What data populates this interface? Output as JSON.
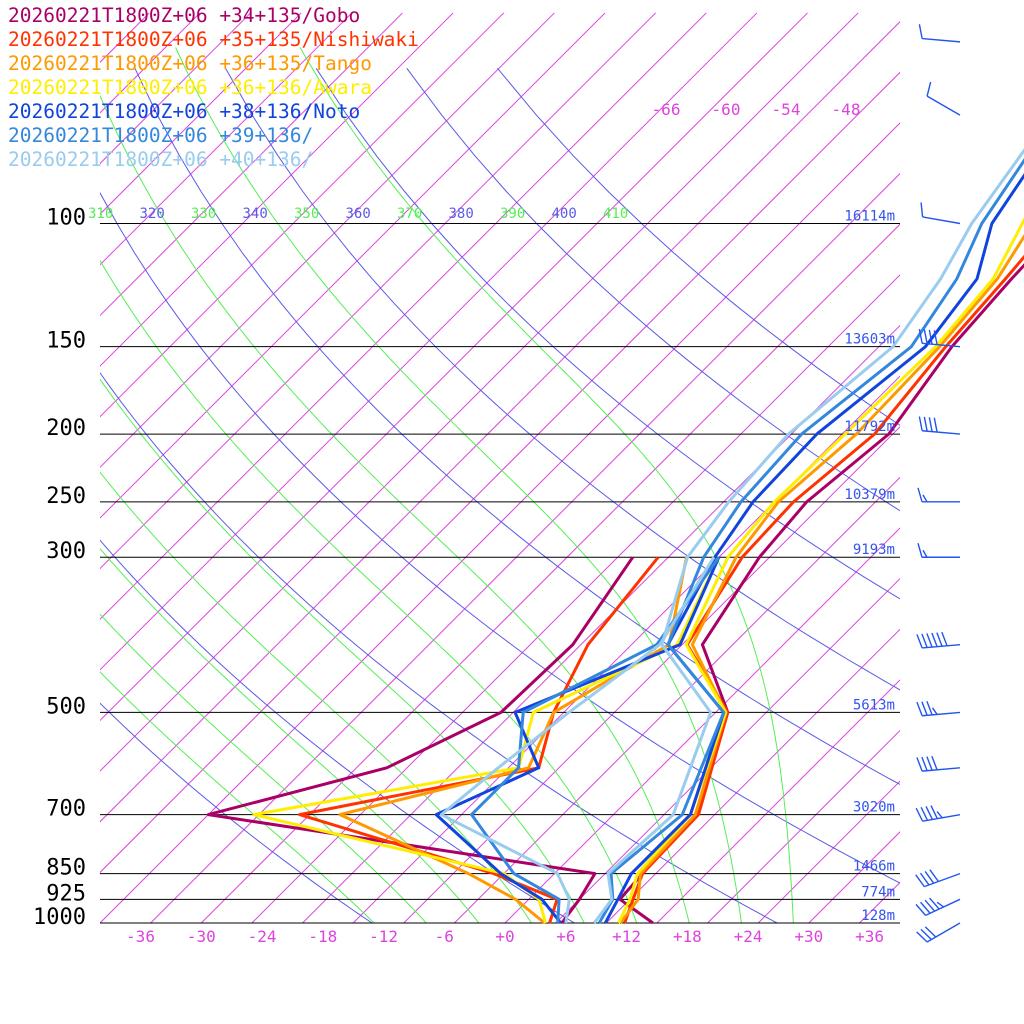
{
  "chart_data": {
    "type": "line",
    "title": "",
    "xlabel": "",
    "ylabel": "",
    "x_unit": "temperature (°C)",
    "y_unit": "pressure (hPa)",
    "y_scale": "log",
    "xlim": [
      -40,
      39
    ],
    "ylim": [
      1000,
      100
    ],
    "x_ticks": [
      "-36",
      "-30",
      "-24",
      "-18",
      "-12",
      "-6",
      "+0",
      "+6",
      "+12",
      "+18",
      "+24",
      "+30",
      "+36"
    ],
    "pressure_levels": [
      {
        "p": 100,
        "label": "100",
        "height": "16114m"
      },
      {
        "p": 150,
        "label": "150",
        "height": "13603m"
      },
      {
        "p": 200,
        "label": "200",
        "height": "11792m"
      },
      {
        "p": 250,
        "label": "250",
        "height": "10379m"
      },
      {
        "p": 300,
        "label": "300",
        "height": "9193m"
      },
      {
        "p": 500,
        "label": "500",
        "height": "5613m"
      },
      {
        "p": 700,
        "label": "700",
        "height": "3020m"
      },
      {
        "p": 850,
        "label": "850",
        "height": "1466m"
      },
      {
        "p": 925,
        "label": "925",
        "height": "774m"
      },
      {
        "p": 1000,
        "label": "1000",
        "height": "128m"
      }
    ],
    "isotherm_labels": [
      "-66",
      "-60",
      "-54",
      "-48"
    ],
    "theta_e_labels": [
      "310",
      "320",
      "330",
      "340",
      "350",
      "360",
      "370",
      "380",
      "390",
      "400",
      "410"
    ],
    "colors": {
      "isotherm": "#dd44dd",
      "theta": "#5a5ae6",
      "theta_e": "#55ee55",
      "pressure_line": "#000000",
      "height_label": "#3355ee",
      "wind_barb": "#2255ee"
    },
    "series": [
      {
        "name": "20260221T1800Z+06 +34+135/Gobo",
        "color": "#aa0066",
        "temperature": [
          [
            1000,
            14.6
          ],
          [
            925,
            9.0
          ],
          [
            850,
            8.7
          ],
          [
            700,
            8.1
          ],
          [
            500,
            1.2
          ],
          [
            400,
            -8.0
          ],
          [
            300,
            -11.0
          ],
          [
            250,
            -11.8
          ],
          [
            200,
            -10.4
          ],
          [
            150,
            -12.8
          ],
          [
            120,
            -13.6
          ],
          [
            100,
            -14.0
          ],
          [
            70,
            -20.0
          ]
        ],
        "dewpoint": [
          [
            1000,
            5.6
          ],
          [
            925,
            5.0
          ],
          [
            850,
            4.0
          ],
          [
            700,
            -40.0
          ],
          [
            600,
            -27.0
          ],
          [
            500,
            -21.2
          ],
          [
            400,
            -20.8
          ],
          [
            300,
            -23.5
          ]
        ]
      },
      {
        "name": "20260221T1800Z+06 +35+135/Nishiwaki",
        "color": "#ff3300",
        "temperature": [
          [
            1000,
            11.8
          ],
          [
            925,
            10.3
          ],
          [
            850,
            8.7
          ],
          [
            700,
            8.4
          ],
          [
            500,
            1.2
          ],
          [
            400,
            -9.5
          ],
          [
            300,
            -12.7
          ],
          [
            250,
            -13.1
          ],
          [
            200,
            -11.8
          ],
          [
            150,
            -13.4
          ],
          [
            120,
            -14.2
          ],
          [
            100,
            -15.0
          ],
          [
            70,
            -21.0
          ]
        ],
        "dewpoint": [
          [
            1000,
            4.4
          ],
          [
            925,
            2.8
          ],
          [
            850,
            -6.0
          ],
          [
            700,
            -31.0
          ],
          [
            600,
            -12.0
          ],
          [
            500,
            -16.0
          ],
          [
            400,
            -19.3
          ],
          [
            300,
            -21.0
          ]
        ]
      },
      {
        "name": "20260221T1800Z+06 +36+135/Tango",
        "color": "#ff9900",
        "temperature": [
          [
            1000,
            11.4
          ],
          [
            925,
            10.8
          ],
          [
            850,
            8.5
          ],
          [
            700,
            8.1
          ],
          [
            500,
            1.0
          ],
          [
            400,
            -9.0
          ],
          [
            300,
            -13.3
          ],
          [
            250,
            -14.6
          ],
          [
            200,
            -13.6
          ],
          [
            150,
            -14.0
          ],
          [
            120,
            -15.0
          ],
          [
            100,
            -17.0
          ],
          [
            70,
            -22.0
          ]
        ],
        "dewpoint": [
          [
            1000,
            3.9
          ],
          [
            925,
            -1.3
          ],
          [
            850,
            -8.5
          ],
          [
            700,
            -27.0
          ],
          [
            600,
            -13.0
          ],
          [
            500,
            -16.0
          ],
          [
            400,
            -11.3
          ],
          [
            300,
            -18.2
          ]
        ]
      },
      {
        "name": "20260221T1800Z+06 +36+136/Awara",
        "color": "#ffee00",
        "temperature": [
          [
            1000,
            11.2
          ],
          [
            925,
            10.0
          ],
          [
            850,
            8.2
          ],
          [
            700,
            7.6
          ],
          [
            500,
            1.0
          ],
          [
            400,
            -9.6
          ],
          [
            300,
            -14.1
          ],
          [
            250,
            -15.0
          ],
          [
            200,
            -14.7
          ],
          [
            150,
            -14.4
          ],
          [
            120,
            -15.4
          ],
          [
            100,
            -18.0
          ],
          [
            70,
            -23.0
          ]
        ],
        "dewpoint": [
          [
            1000,
            4.0
          ],
          [
            925,
            1.0
          ],
          [
            850,
            -5.0
          ],
          [
            700,
            -35.5
          ],
          [
            600,
            -14.0
          ],
          [
            500,
            -18.0
          ],
          [
            400,
            -10.5
          ],
          [
            300,
            -15.0
          ]
        ]
      },
      {
        "name": "20260221T1800Z+06 +38+136/Noto",
        "color": "#1144dd",
        "temperature": [
          [
            1000,
            9.9
          ],
          [
            925,
            8.8
          ],
          [
            850,
            7.6
          ],
          [
            700,
            7.6
          ],
          [
            500,
            0.8
          ],
          [
            400,
            -11.4
          ],
          [
            300,
            -15.4
          ],
          [
            250,
            -17.1
          ],
          [
            200,
            -17.5
          ],
          [
            150,
            -15.4
          ],
          [
            120,
            -17.0
          ],
          [
            100,
            -21.0
          ],
          [
            70,
            -24.5
          ]
        ],
        "dewpoint": [
          [
            1000,
            5.5
          ],
          [
            925,
            1.3
          ],
          [
            850,
            -5.3
          ],
          [
            700,
            -17.5
          ],
          [
            600,
            -12.0
          ],
          [
            500,
            -19.8
          ],
          [
            400,
            -10.2
          ],
          [
            300,
            -15.0
          ]
        ]
      },
      {
        "name": "20260221T1800Z+06 +39+136/",
        "color": "#3388dd",
        "temperature": [
          [
            1000,
            9.3
          ],
          [
            925,
            8.3
          ],
          [
            850,
            5.6
          ],
          [
            700,
            6.8
          ],
          [
            500,
            0.8
          ],
          [
            400,
            -11.4
          ],
          [
            300,
            -16.5
          ],
          [
            250,
            -18.3
          ],
          [
            200,
            -19.0
          ],
          [
            150,
            -16.8
          ],
          [
            120,
            -19.0
          ],
          [
            100,
            -22.0
          ],
          [
            70,
            -25.5
          ]
        ],
        "dewpoint": [
          [
            1000,
            5.2
          ],
          [
            925,
            3.0
          ],
          [
            850,
            -4.0
          ],
          [
            700,
            -14.0
          ],
          [
            600,
            -14.0
          ],
          [
            500,
            -19.0
          ],
          [
            400,
            -12.5
          ],
          [
            300,
            -15.0
          ]
        ]
      },
      {
        "name": "20260221T1800Z+06 +40+136/",
        "color": "#99ccee",
        "temperature": [
          [
            1000,
            8.8
          ],
          [
            925,
            8.2
          ],
          [
            850,
            5.3
          ],
          [
            700,
            5.9
          ],
          [
            500,
            -0.5
          ],
          [
            400,
            -12.0
          ],
          [
            300,
            -18.1
          ],
          [
            250,
            -19.5
          ],
          [
            200,
            -20.3
          ],
          [
            150,
            -18.6
          ],
          [
            120,
            -20.6
          ],
          [
            100,
            -23.0
          ],
          [
            70,
            -26.0
          ]
        ],
        "dewpoint": [
          [
            1000,
            6.0
          ],
          [
            925,
            4.0
          ],
          [
            850,
            0.3
          ],
          [
            700,
            -17.0
          ],
          [
            600,
            -16.0
          ],
          [
            500,
            -14.5
          ],
          [
            400,
            -12.2
          ],
          [
            300,
            -15.5
          ]
        ]
      }
    ],
    "wind_barbs": [
      {
        "p": 1000,
        "dir": 240,
        "speed": 30
      },
      {
        "p": 925,
        "dir": 245,
        "speed": 45
      },
      {
        "p": 850,
        "dir": 250,
        "speed": 40
      },
      {
        "p": 700,
        "dir": 260,
        "speed": 45
      },
      {
        "p": 600,
        "dir": 265,
        "speed": 40
      },
      {
        "p": 500,
        "dir": 265,
        "speed": 35
      },
      {
        "p": 400,
        "dir": 265,
        "speed": 60
      },
      {
        "p": 300,
        "dir": 270,
        "speed": 15
      },
      {
        "p": 250,
        "dir": 270,
        "speed": 15
      },
      {
        "p": 200,
        "dir": 275,
        "speed": 40
      },
      {
        "p": 150,
        "dir": 275,
        "speed": 40
      },
      {
        "p": 100,
        "dir": 280,
        "speed": 10
      },
      {
        "p": 70,
        "dir": 300,
        "speed": 10
      },
      {
        "p": 55,
        "dir": 275,
        "speed": 10
      }
    ]
  }
}
